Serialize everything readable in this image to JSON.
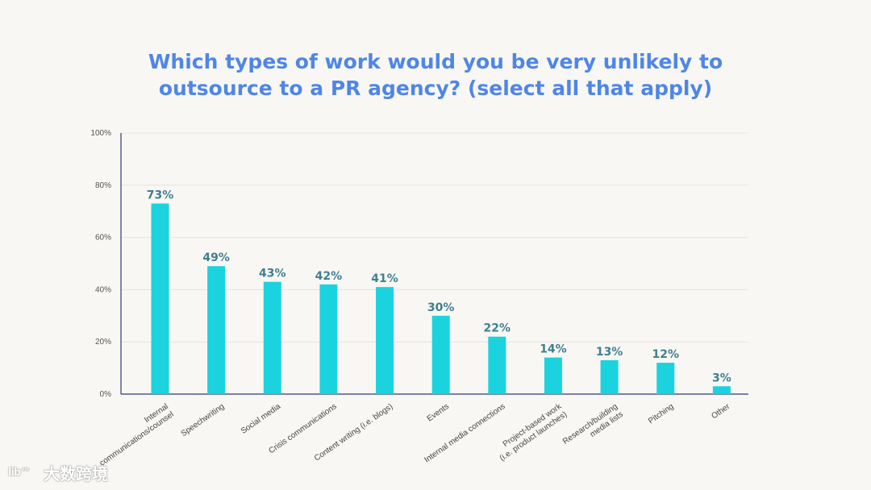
{
  "chart_data": {
    "type": "bar",
    "title_lines": [
      "Which types of work would you be very unlikely to",
      "outsource to a PR agency? (select all that apply)"
    ],
    "categories": [
      [
        "Internal",
        "communications/counsel"
      ],
      [
        "Speechwriting"
      ],
      [
        "Social media"
      ],
      [
        "Crisis communications"
      ],
      [
        "Content writing (i.e. blogs)"
      ],
      [
        "Events"
      ],
      [
        "Internal media connections"
      ],
      [
        "Project-based work",
        "(i.e. product launches)"
      ],
      [
        "Research/building",
        "media lists"
      ],
      [
        "Pitching"
      ],
      [
        "Other"
      ]
    ],
    "values": [
      73,
      49,
      43,
      42,
      41,
      30,
      22,
      14,
      13,
      12,
      3
    ],
    "value_labels": [
      "73%",
      "49%",
      "43%",
      "42%",
      "41%",
      "30%",
      "22%",
      "14%",
      "13%",
      "12%",
      "3%"
    ],
    "yticks": [
      0,
      20,
      40,
      60,
      80,
      100
    ],
    "ytick_labels": [
      "0%",
      "20%",
      "40%",
      "60%",
      "80%",
      "100%"
    ],
    "ylim": [
      0,
      100
    ],
    "xlabel": "",
    "ylabel": "",
    "grid": true,
    "colors": {
      "bar": "#1bd3de",
      "axis": "#2e3a78",
      "grid": "#e4e4e4",
      "label": "#3f7f91",
      "title": "#4f86e6"
    }
  },
  "watermark": {
    "logo": "lib™",
    "text": "大数跨境"
  }
}
